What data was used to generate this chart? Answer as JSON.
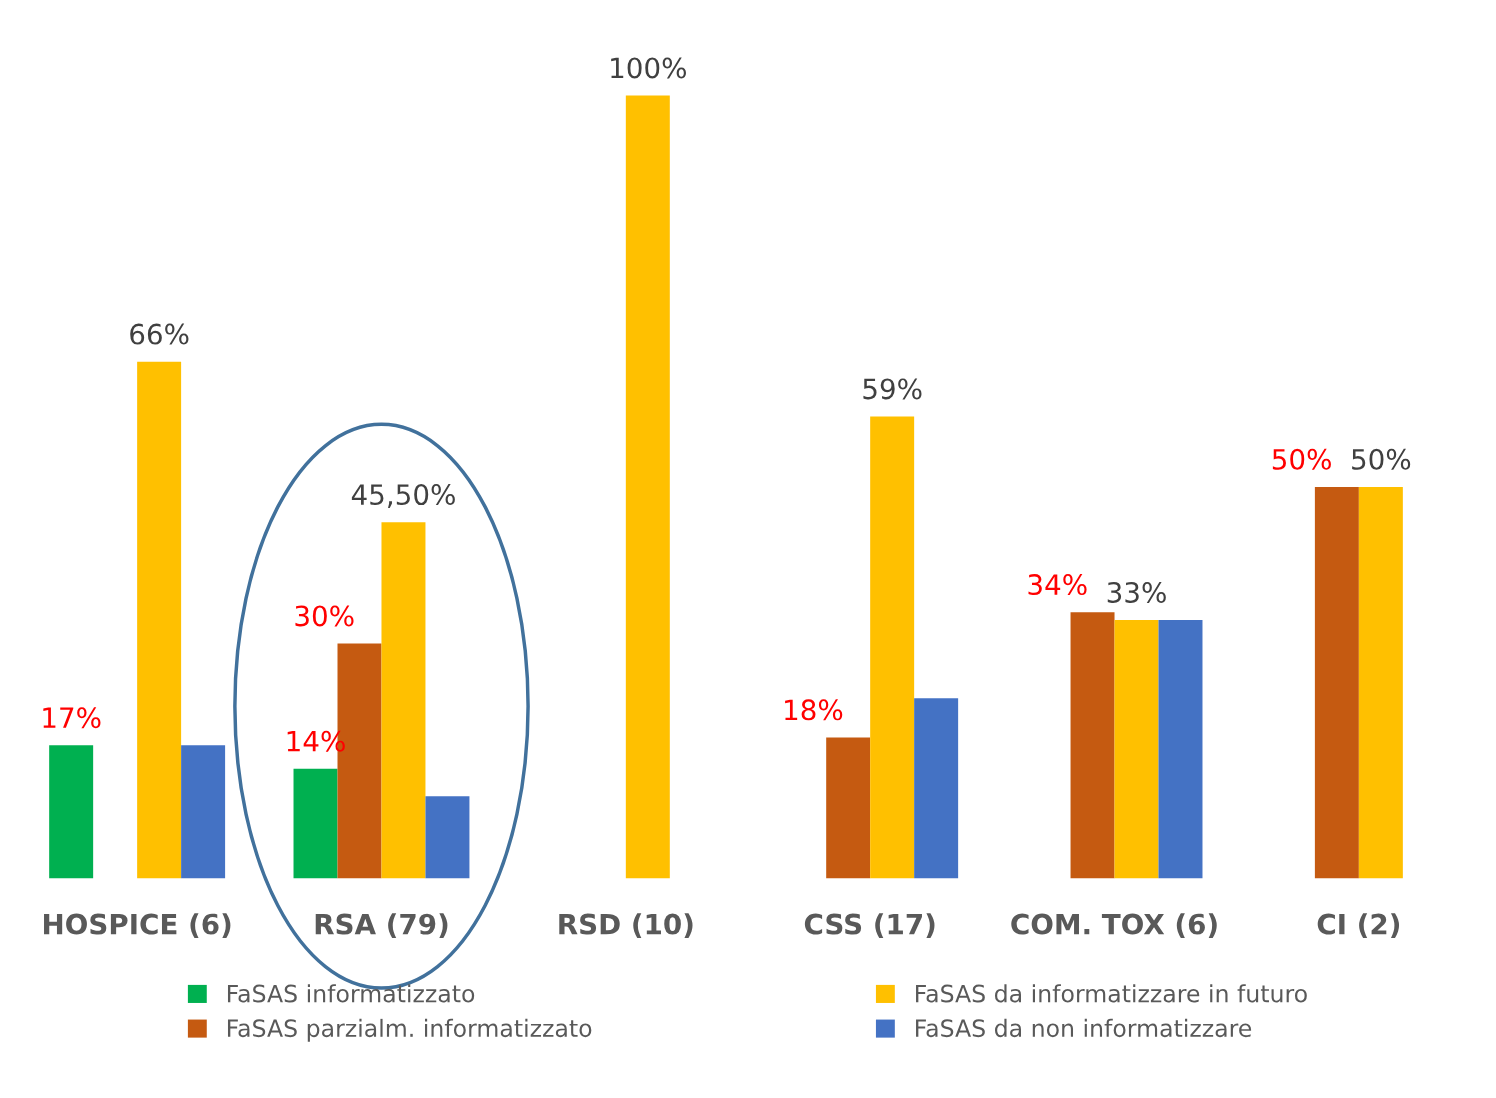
{
  "chart_data": {
    "type": "bar",
    "categories": [
      "HOSPICE (6)",
      "RSA (79)",
      "RSD (10)",
      "CSS (17)",
      "COM. TOX (6)",
      "CI (2)"
    ],
    "series": [
      {
        "name": "FaSAS informatizzato",
        "color": "#00b050",
        "values": [
          17,
          14,
          0,
          0,
          0,
          0
        ],
        "value_labels": [
          "17%",
          "14%",
          null,
          null,
          null,
          null
        ]
      },
      {
        "name": "FaSAS parzialm. informatizzato",
        "color": "#c55a11",
        "values": [
          0,
          30,
          0,
          18,
          34,
          50
        ],
        "value_labels": [
          null,
          "30%",
          null,
          "18%",
          "34%",
          "50%"
        ]
      },
      {
        "name": "FaSAS da informatizzare in futuro",
        "color": "#ffc000",
        "values": [
          66,
          45.5,
          100,
          59,
          33,
          50
        ],
        "value_labels": [
          "66%",
          "45,50%",
          "100%",
          "59%",
          "33%",
          "50%"
        ]
      },
      {
        "name": "FaSAS da non informatizzare",
        "color": "#4472c4",
        "values": [
          17,
          10.5,
          0,
          23,
          33,
          0
        ]
      }
    ],
    "grid": false,
    "legend": "bottom"
  }
}
